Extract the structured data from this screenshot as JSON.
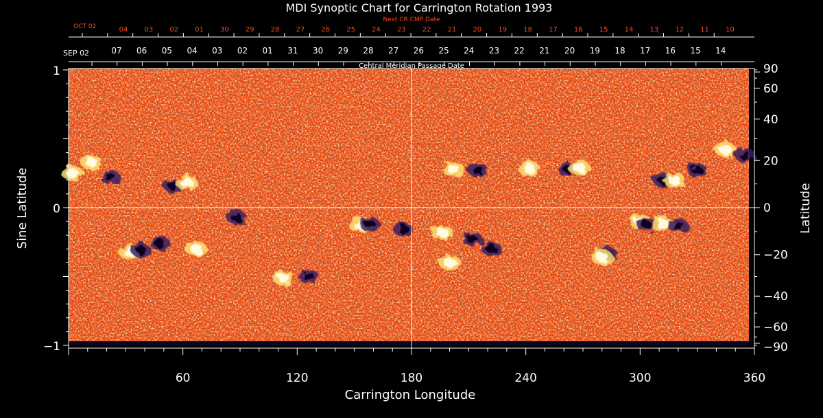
{
  "chart_data": {
    "type": "heatmap",
    "title": "MDI Synoptic Chart for Carrington Rotation 1993",
    "xlabel": "Carrington Longitude",
    "ylabel_left": "Sine Latitude",
    "ylabel_right": "Latitude",
    "top_axis_label": "Central Meridian Passage Date",
    "next_cr_label": "Next CR CMP Date",
    "xlim": [
      0,
      360
    ],
    "ylim": [
      -1,
      1
    ],
    "x_ticks": [
      "60",
      "120",
      "180",
      "240",
      "300",
      "360"
    ],
    "left_ticks": [
      "1",
      "0",
      "−1"
    ],
    "right_ticks": [
      "90",
      "60",
      "40",
      "20",
      "0",
      "−20",
      "−40",
      "−60",
      "−90"
    ],
    "right_tick_values": [
      90,
      60,
      40,
      20,
      0,
      -20,
      -40,
      -60,
      -90
    ],
    "cmp_month_label": "SEP 02",
    "cmp_dates": [
      "07",
      "06",
      "05",
      "04",
      "03",
      "02",
      "01",
      "31",
      "30",
      "29",
      "28",
      "27",
      "26",
      "25",
      "24",
      "23",
      "22",
      "21",
      "20",
      "19",
      "18",
      "17",
      "16",
      "15",
      "14"
    ],
    "next_cr_month_label": "OCT 02",
    "next_cr_dates": [
      "04",
      "03",
      "02",
      "01",
      "30",
      "29",
      "28",
      "27",
      "26",
      "25",
      "24",
      "23",
      "22",
      "21",
      "20",
      "19",
      "18",
      "17",
      "16",
      "15",
      "14",
      "13",
      "12",
      "11",
      "10"
    ],
    "active_regions": [
      {
        "lon": 2,
        "sinlat": 0.25,
        "polarity": "positive"
      },
      {
        "lon": 12,
        "sinlat": 0.33,
        "polarity": "positive"
      },
      {
        "lon": 22,
        "sinlat": 0.22,
        "polarity": "negative"
      },
      {
        "lon": 55,
        "sinlat": 0.16,
        "polarity": "negative"
      },
      {
        "lon": 62,
        "sinlat": 0.18,
        "polarity": "positive"
      },
      {
        "lon": 32,
        "sinlat": -0.32,
        "polarity": "positive"
      },
      {
        "lon": 38,
        "sinlat": -0.31,
        "polarity": "negative"
      },
      {
        "lon": 48,
        "sinlat": -0.26,
        "polarity": "negative"
      },
      {
        "lon": 67,
        "sinlat": -0.3,
        "polarity": "positive"
      },
      {
        "lon": 88,
        "sinlat": -0.07,
        "polarity": "negative"
      },
      {
        "lon": 113,
        "sinlat": -0.51,
        "polarity": "positive"
      },
      {
        "lon": 126,
        "sinlat": -0.5,
        "polarity": "negative"
      },
      {
        "lon": 153,
        "sinlat": -0.13,
        "polarity": "positive"
      },
      {
        "lon": 158,
        "sinlat": -0.12,
        "polarity": "negative"
      },
      {
        "lon": 196,
        "sinlat": -0.18,
        "polarity": "positive"
      },
      {
        "lon": 200,
        "sinlat": -0.4,
        "polarity": "positive"
      },
      {
        "lon": 212,
        "sinlat": -0.23,
        "polarity": "negative"
      },
      {
        "lon": 222,
        "sinlat": -0.3,
        "polarity": "negative"
      },
      {
        "lon": 202,
        "sinlat": 0.28,
        "polarity": "positive"
      },
      {
        "lon": 215,
        "sinlat": 0.27,
        "polarity": "negative"
      },
      {
        "lon": 242,
        "sinlat": 0.28,
        "polarity": "positive"
      },
      {
        "lon": 262,
        "sinlat": 0.28,
        "polarity": "negative"
      },
      {
        "lon": 268,
        "sinlat": 0.29,
        "polarity": "positive"
      },
      {
        "lon": 312,
        "sinlat": 0.2,
        "polarity": "negative"
      },
      {
        "lon": 318,
        "sinlat": 0.2,
        "polarity": "positive"
      },
      {
        "lon": 330,
        "sinlat": 0.27,
        "polarity": "negative"
      },
      {
        "lon": 283,
        "sinlat": -0.34,
        "polarity": "negative"
      },
      {
        "lon": 280,
        "sinlat": -0.36,
        "polarity": "positive"
      },
      {
        "lon": 300,
        "sinlat": -0.1,
        "polarity": "positive"
      },
      {
        "lon": 303,
        "sinlat": -0.12,
        "polarity": "negative"
      },
      {
        "lon": 312,
        "sinlat": -0.12,
        "polarity": "positive"
      },
      {
        "lon": 320,
        "sinlat": -0.13,
        "polarity": "negative"
      },
      {
        "lon": 345,
        "sinlat": 0.42,
        "polarity": "positive"
      },
      {
        "lon": 355,
        "sinlat": 0.38,
        "polarity": "negative"
      },
      {
        "lon": 176,
        "sinlat": -0.16,
        "polarity": "negative"
      }
    ]
  },
  "colors": {
    "background": "#000000",
    "field_base": "#ee4a10",
    "field_positive": "#fff8c8",
    "field_negative": "#1a1030",
    "next_cr_text": "#ff4a1c",
    "axis": "#ffffff"
  }
}
